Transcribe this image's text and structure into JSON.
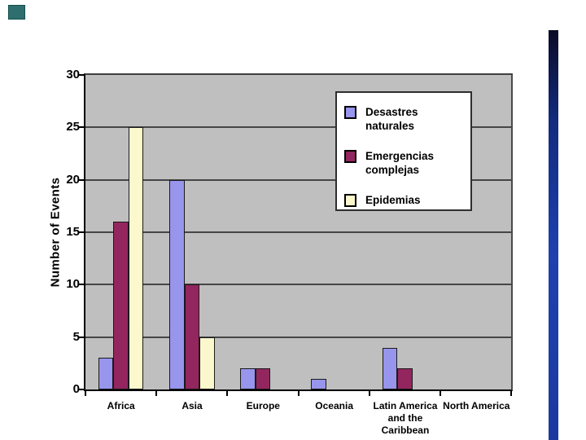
{
  "page": {
    "background": "#FFFFFF"
  },
  "decor": {
    "teal_square": {
      "color": "#2E6E6E",
      "border_color": "#14504E"
    },
    "right_stripe": {
      "top_color": "#0A0A26",
      "upper_color": "#122B7E",
      "mid_color": "#1E41AE",
      "bottom_color": "#1C3AA0"
    }
  },
  "chart_data": {
    "type": "bar",
    "title": "",
    "xlabel": "",
    "ylabel": "Number of Events",
    "ylim": [
      0,
      30
    ],
    "yticks": [
      0,
      5,
      10,
      15,
      20,
      25,
      30
    ],
    "gridlines": [
      5,
      10,
      15,
      20,
      25
    ],
    "grid": "horizontal",
    "plot_background": "#BFBFBF",
    "legend_position": "inside-upper-right",
    "categories": [
      "Africa",
      "Asia",
      "Europe",
      "Oceania",
      "Latin America\nand the\nCaribbean",
      "North America"
    ],
    "series": [
      {
        "name": "Desastres naturales",
        "color": "#9795EC",
        "values": [
          3,
          20,
          2,
          1,
          4,
          0
        ]
      },
      {
        "name": "Emergencias complejas",
        "color": "#93265E",
        "values": [
          16,
          10,
          2,
          0,
          2,
          0
        ]
      },
      {
        "name": "Epidemias",
        "color": "#FAF8CC",
        "values": [
          25,
          5,
          0,
          0,
          0,
          0
        ]
      }
    ]
  },
  "legend": {
    "items": [
      {
        "label": "Desastres\nnaturales",
        "color": "#9795EC"
      },
      {
        "label": "Emergencias\ncomplejas",
        "color": "#93265E"
      },
      {
        "label": "Epidemias",
        "color": "#FAF8CC"
      }
    ]
  }
}
